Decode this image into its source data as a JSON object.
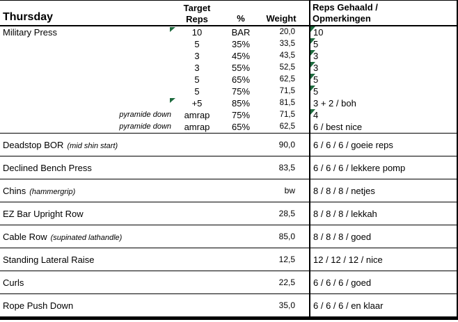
{
  "header": {
    "day": "Thursday",
    "col_target_line1": "Target",
    "col_target_line2": "Reps",
    "col_pct": "%",
    "col_weight": "Weight",
    "col_reps_line1": "Reps Gehaald /",
    "col_reps_line2": "Opmerkingen"
  },
  "military_press": {
    "sets": [
      {
        "name": "Military Press",
        "note": "",
        "target": "10",
        "pct": "BAR",
        "weight": "20,0",
        "result": "10",
        "flag_target": true,
        "flag_result": true
      },
      {
        "name": "",
        "note": "",
        "target": "5",
        "pct": "35%",
        "weight": "33,5",
        "result": "5",
        "flag_target": false,
        "flag_result": true
      },
      {
        "name": "",
        "note": "",
        "target": "3",
        "pct": "45%",
        "weight": "43,5",
        "result": "3",
        "flag_target": false,
        "flag_result": true
      },
      {
        "name": "",
        "note": "",
        "target": "3",
        "pct": "55%",
        "weight": "52,5",
        "result": "3",
        "flag_target": false,
        "flag_result": true
      },
      {
        "name": "",
        "note": "",
        "target": "5",
        "pct": "65%",
        "weight": "62,5",
        "result": "5",
        "flag_target": false,
        "flag_result": true
      },
      {
        "name": "",
        "note": "",
        "target": "5",
        "pct": "75%",
        "weight": "71,5",
        "result": "5",
        "flag_target": false,
        "flag_result": true
      },
      {
        "name": "",
        "note": "",
        "target": "+5",
        "pct": "85%",
        "weight": "81,5",
        "result": "3 + 2 / boh",
        "flag_target": true,
        "flag_result": false
      },
      {
        "name": "",
        "note": "pyramide down",
        "target": "amrap",
        "pct": "75%",
        "weight": "71,5",
        "result": "4",
        "flag_target": false,
        "flag_result": true
      },
      {
        "name": "",
        "note": "pyramide down",
        "target": "amrap",
        "pct": "65%",
        "weight": "62,5",
        "result": "6 / best nice",
        "flag_target": false,
        "flag_result": false
      }
    ]
  },
  "exercises": [
    {
      "name": "Deadstop BOR",
      "note": "(mid shin start)",
      "weight": "90,0",
      "result": "6 / 6 / 6 / goeie reps"
    },
    {
      "name": "Declined Bench Press",
      "note": "",
      "weight": "83,5",
      "result": "6 / 6 / 6 / lekkere pomp"
    },
    {
      "name": "Chins",
      "note": "(hammergrip)",
      "weight": "bw",
      "result": "8 / 8 / 8 / netjes"
    },
    {
      "name": "EZ Bar Upright Row",
      "note": "",
      "weight": "28,5",
      "result": "8 / 8 / 8 / lekkah"
    },
    {
      "name": "Cable Row",
      "note": "(supinated lathandle)",
      "weight": "85,0",
      "result": "8 / 8 / 8 / goed"
    },
    {
      "name": "Standing Lateral Raise",
      "note": "",
      "weight": "12,5",
      "result": "12 / 12 / 12 / nice"
    },
    {
      "name": "Curls",
      "note": "",
      "weight": "22,5",
      "result": "6 / 6 / 6 / goed"
    },
    {
      "name": "Rope Push Down",
      "note": "",
      "weight": "35,0",
      "result": "6 / 6 / 6 / en klaar"
    }
  ],
  "colors": {
    "indicator_green": "#1E6B3E",
    "grid_border": "#000000",
    "background": "#FFFFFF"
  }
}
